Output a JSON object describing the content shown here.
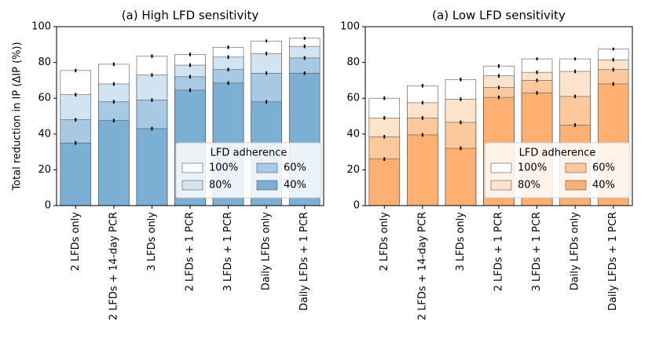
{
  "chart_data": [
    {
      "type": "bar",
      "title": "(a) High LFD sensitivity",
      "ylabel": "Total reduction in IP (ΔIP (%))",
      "categories": [
        "2 LFDs only",
        "2 LFDs + 14-day PCR",
        "3 LFDs only",
        "2 LFDs + 1 PCR",
        "3 LFDs + 1 PCR",
        "Daily LFDs only",
        "Daily LFDs + 1 PCR"
      ],
      "legend_title": "LFD adherence",
      "legend": "lower right",
      "series": [
        {
          "name": "100%",
          "color": "#ffffff",
          "values": [
            75.5,
            79,
            83.5,
            84.5,
            88.5,
            92,
            93.5
          ],
          "errors": [
            1,
            1,
            1,
            1,
            1,
            0.8,
            0.8
          ]
        },
        {
          "name": "80%",
          "color": "#d2e3f1",
          "values": [
            62,
            68,
            73,
            78.5,
            83,
            85,
            89
          ],
          "errors": [
            1,
            1,
            1,
            1,
            1,
            1,
            1
          ]
        },
        {
          "name": "60%",
          "color": "#a7c9e4",
          "values": [
            48,
            58,
            59,
            72,
            76,
            74,
            82.5
          ],
          "errors": [
            1,
            1,
            1,
            1,
            1,
            1,
            1
          ]
        },
        {
          "name": "40%",
          "color": "#7bafd4",
          "values": [
            35,
            47.5,
            43,
            64.5,
            68.5,
            58,
            74
          ],
          "errors": [
            1,
            1,
            1,
            1,
            1,
            1,
            1
          ]
        }
      ],
      "ylim": [
        0,
        100
      ],
      "yticks": [
        0,
        20,
        40,
        60,
        80,
        100
      ]
    },
    {
      "type": "bar",
      "title": "(a) Low LFD sensitivity",
      "categories": [
        "2 LFDs only",
        "2 LFDs + 14-day PCR",
        "3 LFDs only",
        "2 LFDs + 1 PCR",
        "3 LFDs + 1 PCR",
        "Daily LFDs only",
        "Daily LFDs + 1 PCR"
      ],
      "legend_title": "LFD adherence",
      "legend": "lower right",
      "series": [
        {
          "name": "100%",
          "color": "#ffffff",
          "values": [
            60,
            67,
            70.5,
            78,
            82,
            82,
            87.5
          ],
          "errors": [
            1,
            1,
            1,
            1,
            0.8,
            0.8,
            0.8
          ]
        },
        {
          "name": "80%",
          "color": "#fee3cc",
          "values": [
            49,
            57.5,
            59.5,
            72.5,
            74.5,
            75,
            81.5
          ],
          "errors": [
            1,
            1,
            1,
            1,
            1,
            1,
            1
          ]
        },
        {
          "name": "60%",
          "color": "#fdc99c",
          "values": [
            38.5,
            49,
            46.5,
            66,
            70,
            61,
            76
          ],
          "errors": [
            1,
            1,
            1,
            1,
            1,
            1,
            1
          ]
        },
        {
          "name": "40%",
          "color": "#fdb072",
          "values": [
            26,
            39.5,
            32,
            60.5,
            63,
            45,
            68
          ],
          "errors": [
            1,
            1,
            1,
            1,
            1,
            1,
            1
          ]
        }
      ],
      "ylim": [
        0,
        100
      ],
      "yticks": [
        0,
        20,
        40,
        60,
        80,
        100
      ]
    }
  ]
}
